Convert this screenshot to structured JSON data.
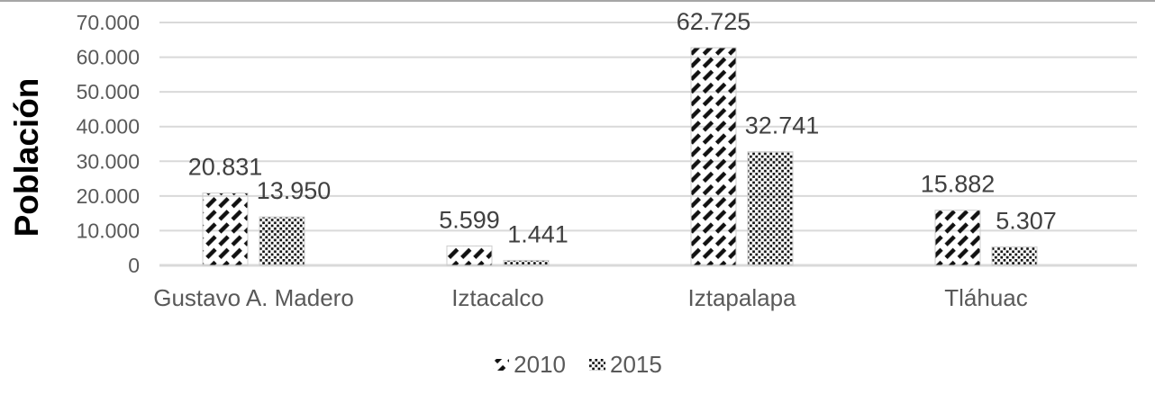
{
  "chart_data": {
    "type": "bar",
    "title": "",
    "xlabel": "",
    "ylabel": "Población",
    "categories": [
      "Gustavo A. Madero",
      "Iztacalco",
      "Iztapalapa",
      "Tláhuac"
    ],
    "series": [
      {
        "name": "2010",
        "pattern": "diagonal-dash",
        "values": [
          20831,
          5599,
          62725,
          15882
        ],
        "labels": [
          "20.831",
          "5.599",
          "62.725",
          "15.882"
        ]
      },
      {
        "name": "2015",
        "pattern": "dots",
        "values": [
          13950,
          1441,
          32741,
          5307
        ],
        "labels": [
          "13.950",
          "1.441",
          "32.741",
          "5.307"
        ]
      }
    ],
    "ylim": [
      0,
      70000
    ],
    "yticks": [
      {
        "value": 0,
        "label": "0"
      },
      {
        "value": 10000,
        "label": "10.000"
      },
      {
        "value": 20000,
        "label": "20.000"
      },
      {
        "value": 30000,
        "label": "30.000"
      },
      {
        "value": 40000,
        "label": "40.000"
      },
      {
        "value": 50000,
        "label": "50.000"
      },
      {
        "value": 60000,
        "label": "60.000"
      },
      {
        "value": 70000,
        "label": "70.000"
      }
    ],
    "grid": "horizontal",
    "legend_position": "bottom",
    "colors": {
      "pattern_ink": "#111111",
      "grid": "#d9d9d9",
      "tick_text": "#595959",
      "data_label_text": "#404040",
      "axis_title_text": "#000000",
      "bar_border": "#cccccc",
      "top_border": "#a6a6a6"
    }
  }
}
